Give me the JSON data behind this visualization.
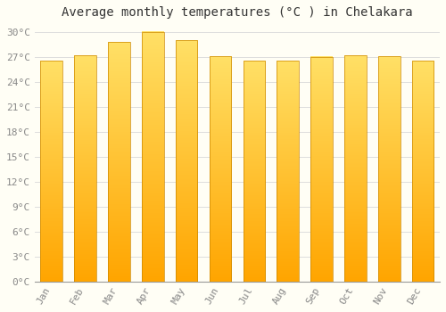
{
  "title": "Average monthly temperatures (°C ) in Chelakara",
  "months": [
    "Jan",
    "Feb",
    "Mar",
    "Apr",
    "May",
    "Jun",
    "Jul",
    "Aug",
    "Sep",
    "Oct",
    "Nov",
    "Dec"
  ],
  "values": [
    26.5,
    27.2,
    28.8,
    30.0,
    29.0,
    27.1,
    26.5,
    26.5,
    27.0,
    27.2,
    27.1,
    26.5
  ],
  "bar_color_bottom": "#FFA500",
  "bar_color_top": "#FFE066",
  "bar_edge_color": "#CC8800",
  "background_color": "#FFFEF5",
  "grid_color": "#DDDDDD",
  "ytick_step": 3,
  "ymin": 0,
  "ymax": 31,
  "title_fontsize": 10,
  "tick_fontsize": 8,
  "tick_color": "#888888",
  "font_family": "monospace"
}
